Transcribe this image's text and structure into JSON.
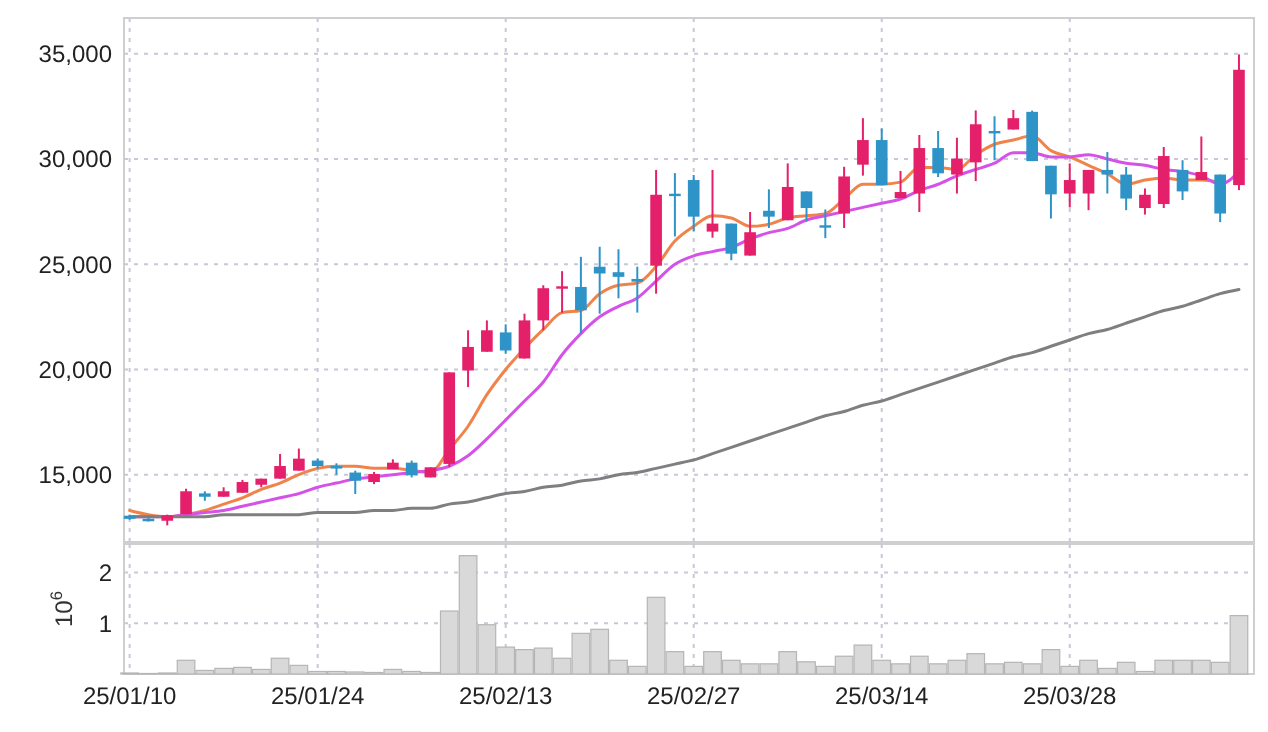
{
  "chart_data": [
    {
      "type": "candlestick",
      "categories": [
        null,
        null,
        null,
        null,
        null,
        null,
        null,
        null,
        null,
        null,
        null,
        null,
        null,
        null,
        null,
        null,
        null,
        null,
        null,
        null,
        null,
        null,
        null,
        null,
        null,
        null,
        null,
        null,
        null,
        null,
        null,
        null,
        null,
        null,
        null,
        null,
        null,
        null,
        null,
        null,
        null,
        null,
        null,
        null,
        null,
        null,
        null,
        null,
        null,
        null,
        null,
        null,
        null,
        null,
        null,
        null,
        null,
        null,
        null,
        null
      ],
      "ohlc": [
        [
          13050,
          13100,
          12850,
          12900
        ],
        [
          12900,
          12950,
          12770,
          12870
        ],
        [
          12810,
          13100,
          12590,
          13070
        ],
        [
          13120,
          14330,
          13120,
          14210
        ],
        [
          14110,
          14210,
          13760,
          13950
        ],
        [
          13950,
          14400,
          13950,
          14210
        ],
        [
          14140,
          14750,
          14140,
          14650
        ],
        [
          14520,
          14810,
          14400,
          14810
        ],
        [
          14810,
          15980,
          14810,
          15410
        ],
        [
          15190,
          16240,
          15190,
          15760
        ],
        [
          15670,
          15760,
          15290,
          15410
        ],
        [
          15410,
          15540,
          15000,
          15290
        ],
        [
          15100,
          15190,
          14080,
          14710
        ],
        [
          14650,
          15130,
          14550,
          15030
        ],
        [
          15260,
          15730,
          15260,
          15570
        ],
        [
          15570,
          15670,
          14870,
          14970
        ],
        [
          14870,
          15350,
          14870,
          15350
        ],
        [
          15510,
          19860,
          15380,
          19860
        ],
        [
          19950,
          21860,
          19160,
          21070
        ],
        [
          20840,
          22330,
          20840,
          21860
        ],
        [
          21760,
          22140,
          20740,
          20900
        ],
        [
          20520,
          22650,
          20520,
          22330
        ],
        [
          22330,
          24000,
          21860,
          23860
        ],
        [
          23860,
          24670,
          22700,
          23950
        ],
        [
          23920,
          25350,
          21700,
          22810
        ],
        [
          24880,
          25830,
          22650,
          24560
        ],
        [
          24620,
          25710,
          23380,
          24400
        ],
        [
          24300,
          24880,
          22700,
          24170
        ],
        [
          24930,
          29480,
          23600,
          28300
        ],
        [
          28350,
          29330,
          26320,
          28250
        ],
        [
          29000,
          29240,
          26570,
          27260
        ],
        [
          26550,
          29480,
          26260,
          26930
        ],
        [
          26930,
          26930,
          25190,
          25500
        ],
        [
          25410,
          27480,
          25410,
          26520
        ],
        [
          27540,
          28560,
          26720,
          27260
        ],
        [
          27090,
          29790,
          27090,
          28670
        ],
        [
          28460,
          28460,
          27030,
          27670
        ],
        [
          26850,
          27600,
          26240,
          26780
        ],
        [
          27410,
          29630,
          26720,
          29170
        ],
        [
          29730,
          31940,
          29210,
          30900
        ],
        [
          30900,
          31450,
          28760,
          28760
        ],
        [
          28140,
          29430,
          28140,
          28430
        ],
        [
          28360,
          31140,
          27480,
          30520
        ],
        [
          30520,
          31330,
          29140,
          29320
        ],
        [
          29260,
          31010,
          28360,
          30020
        ],
        [
          29840,
          32310,
          28950,
          31650
        ],
        [
          31330,
          32030,
          29940,
          31260
        ],
        [
          31400,
          32330,
          31400,
          31940
        ],
        [
          32240,
          32300,
          29900,
          29900
        ],
        [
          29680,
          29680,
          27170,
          28320
        ],
        [
          28360,
          29790,
          27700,
          29000
        ],
        [
          28360,
          29480,
          27570,
          29480
        ],
        [
          29480,
          30330,
          28360,
          29260
        ],
        [
          29260,
          29620,
          27570,
          28120
        ],
        [
          27670,
          28600,
          27360,
          28300
        ],
        [
          27860,
          30570,
          27670,
          30140
        ],
        [
          29480,
          29940,
          28050,
          28460
        ],
        [
          29000,
          31070,
          29000,
          29380
        ],
        [
          29260,
          29260,
          27000,
          27410
        ],
        [
          28760,
          34970,
          28520,
          34240
        ]
      ],
      "colors": [
        "#2e94c8",
        "#2e94c8",
        "#e5206a",
        "#e5206a",
        "#2e94c8",
        "#e5206a",
        "#e5206a",
        "#e5206a",
        "#e5206a",
        "#e5206a",
        "#2e94c8",
        "#2e94c8",
        "#2e94c8",
        "#e5206a",
        "#e5206a",
        "#2e94c8",
        "#e5206a",
        "#e5206a",
        "#e5206a",
        "#e5206a",
        "#2e94c8",
        "#e5206a",
        "#e5206a",
        "#e5206a",
        "#2e94c8",
        "#2e94c8",
        "#2e94c8",
        "#2e94c8",
        "#e5206a",
        "#2e94c8",
        "#2e94c8",
        "#e5206a",
        "#2e94c8",
        "#e5206a",
        "#2e94c8",
        "#e5206a",
        "#2e94c8",
        "#2e94c8",
        "#e5206a",
        "#e5206a",
        "#2e94c8",
        "#e5206a",
        "#e5206a",
        "#2e94c8",
        "#e5206a",
        "#e5206a",
        "#2e94c8",
        "#e5206a",
        "#2e94c8",
        "#2e94c8",
        "#e5206a",
        "#e5206a",
        "#2e94c8",
        "#2e94c8",
        "#e5206a",
        "#e5206a",
        "#2e94c8",
        "#e5206a",
        "#2e94c8",
        "#e5206a"
      ],
      "series": [
        {
          "type": "line",
          "color": "#f0834a",
          "values": [
            13300,
            13100,
            13000,
            13100,
            13300,
            13600,
            13900,
            14300,
            14600,
            15000,
            15300,
            15400,
            15400,
            15300,
            15300,
            15200,
            15100,
            16200,
            17300,
            18800,
            20000,
            21000,
            21900,
            22700,
            22800,
            23600,
            24000,
            24100,
            24900,
            26100,
            26800,
            27300,
            27200,
            26800,
            26900,
            27200,
            27300,
            27400,
            28100,
            28800,
            28800,
            28900,
            29600,
            29600,
            29500,
            30200,
            30700,
            30900,
            31100,
            30400,
            30100,
            29700,
            29300,
            28800,
            29000,
            29100,
            29000,
            29000,
            28900,
            null
          ]
        },
        {
          "type": "line",
          "color": "#d452e8",
          "values": [
            13000,
            13000,
            13000,
            13100,
            13200,
            13300,
            13500,
            13700,
            13900,
            14100,
            14400,
            14600,
            14800,
            14900,
            15000,
            15100,
            15200,
            15400,
            15900,
            16700,
            17600,
            18500,
            19400,
            20700,
            21700,
            22500,
            23000,
            23400,
            24200,
            25000,
            25400,
            25600,
            25800,
            26200,
            26500,
            26700,
            27100,
            27300,
            27500,
            27700,
            27900,
            28100,
            28500,
            28800,
            29200,
            29500,
            29800,
            30300,
            30300,
            30100,
            30100,
            30200,
            30000,
            29800,
            29700,
            29500,
            29400,
            29200,
            28800,
            29400
          ]
        },
        {
          "type": "line",
          "color": "#7f7f7f",
          "values": [
            13000,
            13000,
            13000,
            13000,
            13000,
            13100,
            13100,
            13100,
            13100,
            13100,
            13200,
            13200,
            13200,
            13300,
            13300,
            13400,
            13400,
            13600,
            13700,
            13900,
            14100,
            14200,
            14400,
            14500,
            14700,
            14800,
            15000,
            15100,
            15300,
            15500,
            15700,
            16000,
            16300,
            16600,
            16900,
            17200,
            17500,
            17800,
            18000,
            18300,
            18500,
            18800,
            19100,
            19400,
            19700,
            20000,
            20300,
            20600,
            20800,
            21100,
            21400,
            21700,
            21900,
            22200,
            22500,
            22800,
            23000,
            23300,
            23600,
            23800
          ]
        }
      ],
      "ylim": [
        11800,
        36700
      ],
      "yticks": [
        {
          "value": 15000,
          "label": "15,000"
        },
        {
          "value": 20000,
          "label": "20,000"
        },
        {
          "value": 25000,
          "label": "25,000"
        },
        {
          "value": 30000,
          "label": "30,000"
        },
        {
          "value": 35000,
          "label": "35,000"
        }
      ],
      "grid": true,
      "tick_labels": "y"
    },
    {
      "type": "bar",
      "ylabel": "10$^{6}$",
      "categories": [
        "25/01/10",
        null,
        null,
        null,
        null,
        null,
        null,
        null,
        null,
        null,
        "25/01/24",
        null,
        null,
        null,
        null,
        null,
        null,
        null,
        null,
        null,
        "25/02/13",
        null,
        null,
        null,
        null,
        null,
        null,
        null,
        null,
        null,
        "25/02/27",
        null,
        null,
        null,
        null,
        null,
        null,
        null,
        null,
        null,
        "25/03/14",
        null,
        null,
        null,
        null,
        null,
        null,
        null,
        null,
        null,
        "25/03/28",
        null,
        null,
        null,
        null,
        null,
        null,
        null,
        null,
        null
      ],
      "values": [
        0.02,
        0.01,
        0.02,
        0.27,
        0.07,
        0.11,
        0.13,
        0.09,
        0.31,
        0.17,
        0.05,
        0.05,
        0.04,
        0.03,
        0.09,
        0.05,
        0.03,
        1.24,
        2.33,
        0.97,
        0.53,
        0.48,
        0.51,
        0.31,
        0.8,
        0.88,
        0.27,
        0.15,
        1.51,
        0.44,
        0.15,
        0.44,
        0.27,
        0.2,
        0.2,
        0.44,
        0.24,
        0.15,
        0.35,
        0.57,
        0.27,
        0.2,
        0.35,
        0.2,
        0.27,
        0.4,
        0.2,
        0.23,
        0.2,
        0.48,
        0.15,
        0.27,
        0.11,
        0.23,
        0.05,
        0.27,
        0.27,
        0.27,
        0.23,
        1.15
      ],
      "color": "#d9d9d9",
      "ylim": [
        0,
        2.56
      ],
      "yticks": [
        1,
        2
      ],
      "grid": true
    }
  ]
}
